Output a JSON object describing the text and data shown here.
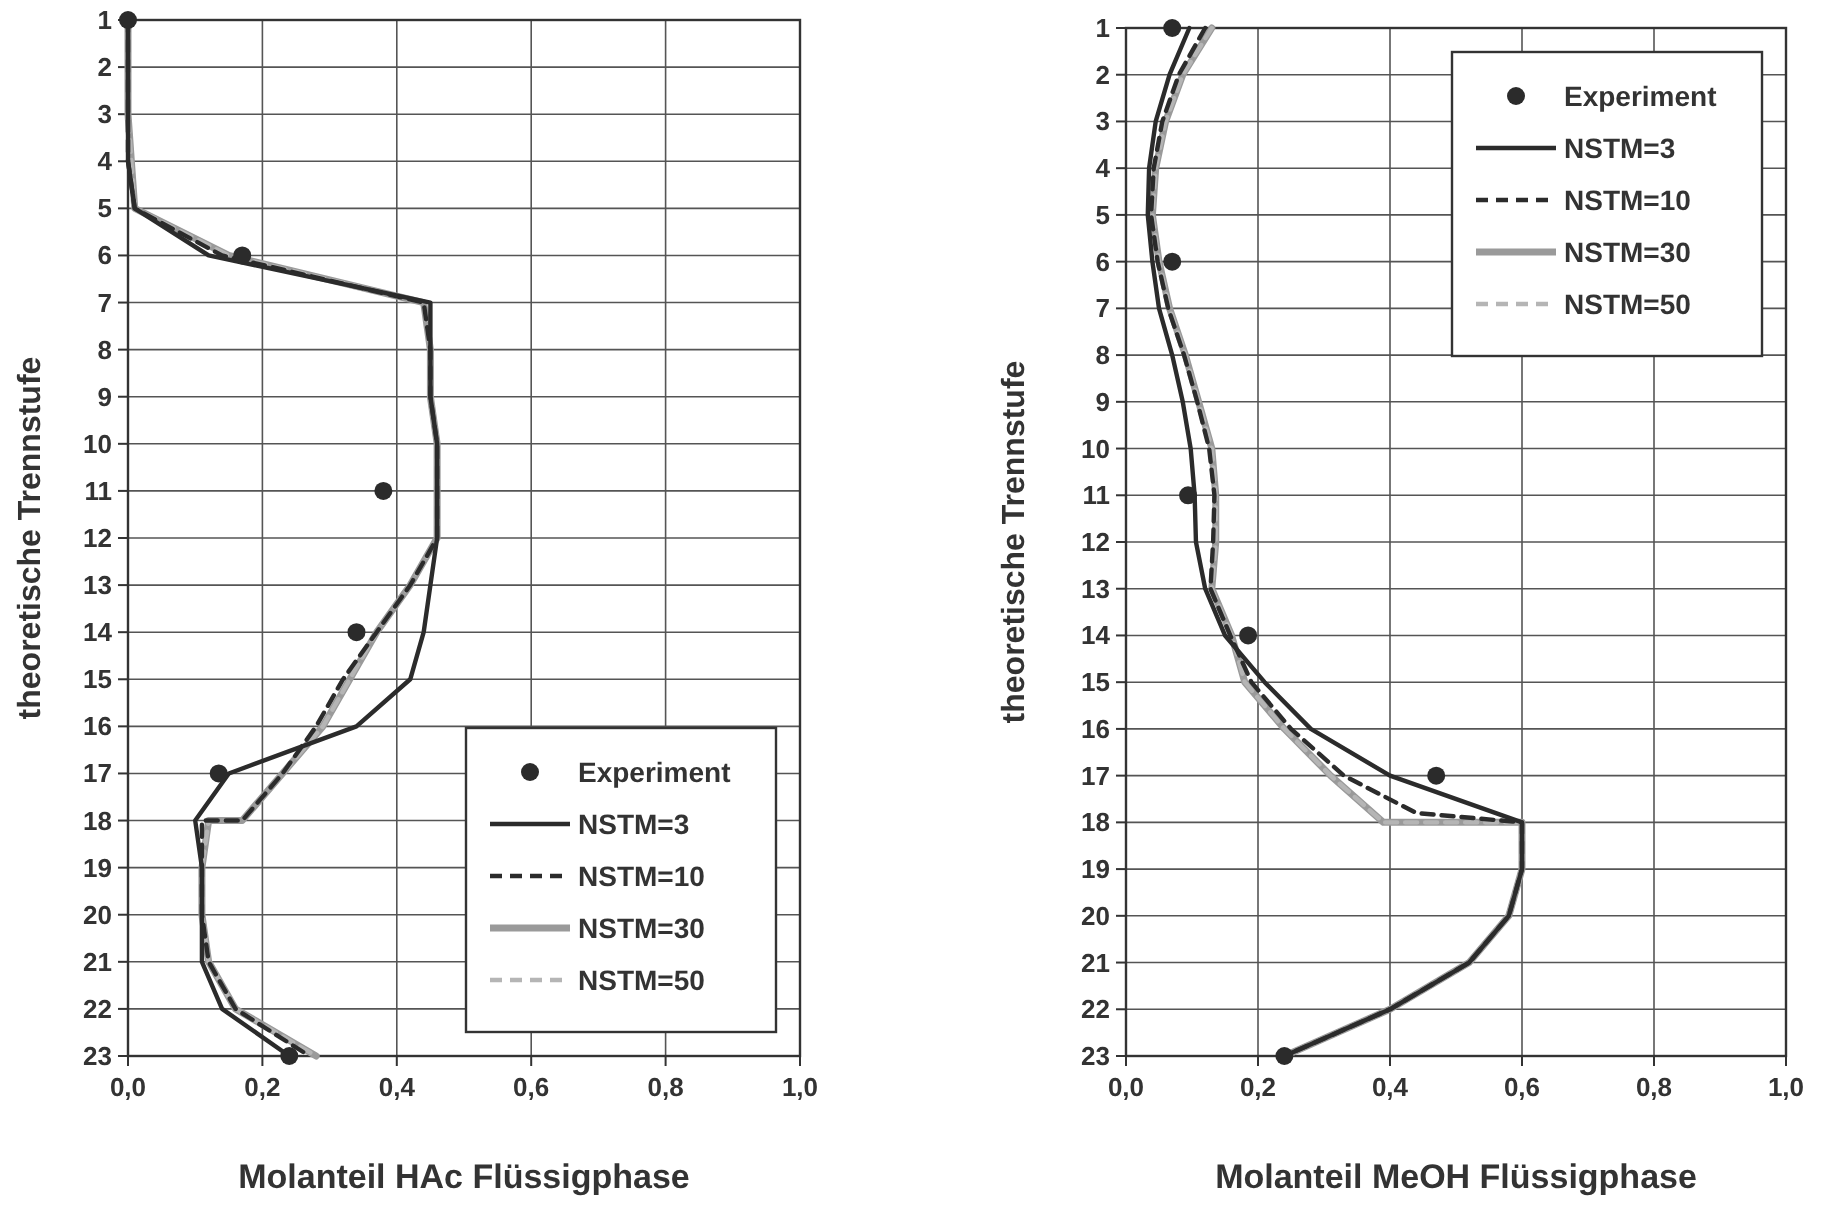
{
  "chart_data": [
    {
      "type": "line",
      "xlabel": "Molanteil HAc Flüssigphase",
      "ylabel": "theoretische Trennstufe",
      "xlim": [
        0,
        1
      ],
      "xticks": [
        {
          "value": 0,
          "label": "0,0"
        },
        {
          "value": 0.2,
          "label": "0,2"
        },
        {
          "value": 0.4,
          "label": "0,4"
        },
        {
          "value": 0.6,
          "label": "0,6"
        },
        {
          "value": 0.8,
          "label": "0,8"
        },
        {
          "value": 1,
          "label": "1,0"
        }
      ],
      "ylim": [
        23,
        1
      ],
      "yticks": [
        1,
        2,
        3,
        4,
        5,
        6,
        7,
        8,
        9,
        10,
        11,
        12,
        13,
        14,
        15,
        16,
        17,
        18,
        19,
        20,
        21,
        22,
        23
      ],
      "grid": true,
      "legend": "bottom right",
      "series": [
        {
          "name": "Experiment",
          "type": "scatter",
          "marker": "circle",
          "color": "#2b2b2b",
          "x": [
            0,
            0.17,
            0.38,
            0.34,
            0.135,
            0.24
          ],
          "values": [
            1,
            6,
            11,
            14,
            17,
            23
          ]
        },
        {
          "name": "NSTM=3",
          "type": "line",
          "marker": "none",
          "line_style": "solid",
          "color": "#2b2b2b",
          "x": [
            0,
            0,
            0,
            0,
            0.01,
            0.12,
            0.45,
            0.45,
            0.45,
            0.46,
            0.46,
            0.46,
            0.45,
            0.44,
            0.42,
            0.34,
            0.15,
            0.1,
            0.11,
            0.11,
            0.11,
            0.14,
            0.24
          ],
          "values": [
            1,
            2,
            3,
            4,
            5,
            6,
            7,
            8,
            9,
            10,
            11,
            12,
            13,
            14,
            15,
            16,
            17,
            18,
            19,
            20,
            21,
            22,
            23
          ]
        },
        {
          "name": "NSTM=10",
          "type": "line",
          "marker": "none",
          "line_style": "dashed",
          "color": "#2b2b2b",
          "x": [
            0,
            0,
            0,
            0,
            0.01,
            0.14,
            0.44,
            0.45,
            0.45,
            0.46,
            0.46,
            0.46,
            0.42,
            0.37,
            0.32,
            0.28,
            0.23,
            0.17,
            0.11,
            0.11,
            0.11,
            0.12,
            0.16,
            0.27
          ],
          "values": [
            1,
            2,
            3,
            4,
            5,
            6,
            7,
            8,
            9,
            10,
            11,
            12,
            13,
            14,
            15,
            16,
            17,
            18,
            18,
            19,
            20,
            21,
            22,
            23
          ]
        },
        {
          "name": "NSTM=30",
          "type": "line",
          "marker": "none",
          "line_style": "solid",
          "color": "#9a9a9a",
          "x": [
            0,
            0,
            0,
            0.005,
            0.01,
            0.15,
            0.44,
            0.45,
            0.45,
            0.46,
            0.46,
            0.46,
            0.42,
            0.37,
            0.33,
            0.29,
            0.23,
            0.17,
            0.12,
            0.11,
            0.11,
            0.12,
            0.16,
            0.28
          ],
          "values": [
            1,
            2,
            3,
            4,
            5,
            6,
            7,
            8,
            9,
            10,
            11,
            12,
            13,
            14,
            15,
            16,
            17,
            18,
            18,
            19,
            20,
            21,
            22,
            23
          ]
        },
        {
          "name": "NSTM=50",
          "type": "line",
          "marker": "none",
          "line_style": "dashed",
          "color": "#b5b5b5",
          "x": [
            0,
            0,
            0,
            0.005,
            0.01,
            0.15,
            0.44,
            0.45,
            0.45,
            0.46,
            0.46,
            0.46,
            0.42,
            0.37,
            0.33,
            0.29,
            0.23,
            0.17,
            0.12,
            0.11,
            0.11,
            0.12,
            0.16,
            0.28
          ],
          "values": [
            1,
            2,
            3,
            4,
            5,
            6,
            7,
            8,
            9,
            10,
            11,
            12,
            13,
            14,
            15,
            16,
            17,
            18,
            18,
            19,
            20,
            21,
            22,
            23
          ]
        }
      ]
    },
    {
      "type": "line",
      "xlabel": "Molanteil MeOH Flüssigphase",
      "ylabel": "theoretische Trennstufe",
      "xlim": [
        0,
        1
      ],
      "xticks": [
        {
          "value": 0,
          "label": "0,0"
        },
        {
          "value": 0.2,
          "label": "0,2"
        },
        {
          "value": 0.4,
          "label": "0,4"
        },
        {
          "value": 0.6,
          "label": "0,6"
        },
        {
          "value": 0.8,
          "label": "0,8"
        },
        {
          "value": 1,
          "label": "1,0"
        }
      ],
      "ylim": [
        23,
        1
      ],
      "yticks": [
        1,
        2,
        3,
        4,
        5,
        6,
        7,
        8,
        9,
        10,
        11,
        12,
        13,
        14,
        15,
        16,
        17,
        18,
        19,
        20,
        21,
        22,
        23
      ],
      "grid": true,
      "legend": "top right",
      "series": [
        {
          "name": "Experiment",
          "type": "scatter",
          "marker": "circle",
          "color": "#2b2b2b",
          "x": [
            0.07,
            0.07,
            0.094,
            0.185,
            0.47,
            0.24
          ],
          "values": [
            1,
            6,
            11,
            14,
            17,
            23
          ]
        },
        {
          "name": "NSTM=3",
          "type": "line",
          "marker": "none",
          "line_style": "solid",
          "color": "#2b2b2b",
          "x": [
            0.096,
            0.066,
            0.045,
            0.035,
            0.033,
            0.04,
            0.05,
            0.07,
            0.086,
            0.098,
            0.104,
            0.106,
            0.12,
            0.15,
            0.21,
            0.28,
            0.4,
            0.6,
            0.6,
            0.58,
            0.52,
            0.4,
            0.24
          ],
          "values": [
            1,
            2,
            3,
            4,
            5,
            6,
            7,
            8,
            9,
            10,
            11,
            12,
            13,
            14,
            15,
            16,
            17,
            18,
            19,
            20,
            21,
            22,
            23
          ]
        },
        {
          "name": "NSTM=10",
          "type": "line",
          "marker": "none",
          "line_style": "dashed",
          "color": "#2b2b2b",
          "x": [
            0.12,
            0.08,
            0.055,
            0.042,
            0.038,
            0.048,
            0.064,
            0.088,
            0.108,
            0.126,
            0.134,
            0.132,
            0.128,
            0.158,
            0.19,
            0.25,
            0.33,
            0.44,
            0.6,
            0.6,
            0.58,
            0.52,
            0.4,
            0.24
          ],
          "values": [
            1,
            2,
            3,
            4,
            5,
            6,
            7,
            8,
            9,
            10,
            11,
            12,
            13,
            14,
            15,
            16,
            17,
            17.8,
            18,
            19,
            20,
            21,
            22,
            23
          ]
        },
        {
          "name": "NSTM=30",
          "type": "line",
          "marker": "none",
          "line_style": "solid",
          "color": "#9a9a9a",
          "x": [
            0.13,
            0.086,
            0.06,
            0.045,
            0.04,
            0.05,
            0.066,
            0.09,
            0.11,
            0.13,
            0.136,
            0.136,
            0.13,
            0.16,
            0.18,
            0.24,
            0.31,
            0.39,
            0.6,
            0.6,
            0.58,
            0.52,
            0.4,
            0.24
          ],
          "values": [
            1,
            2,
            3,
            4,
            5,
            6,
            7,
            8,
            9,
            10,
            11,
            12,
            13,
            14,
            15,
            16,
            17,
            18,
            18,
            19,
            20,
            21,
            22,
            23
          ]
        },
        {
          "name": "NSTM=50",
          "type": "line",
          "marker": "none",
          "line_style": "dashed",
          "color": "#b5b5b5",
          "x": [
            0.13,
            0.086,
            0.06,
            0.045,
            0.04,
            0.05,
            0.066,
            0.09,
            0.11,
            0.13,
            0.136,
            0.136,
            0.13,
            0.16,
            0.18,
            0.24,
            0.31,
            0.39,
            0.6,
            0.6,
            0.58,
            0.52,
            0.4,
            0.24
          ],
          "values": [
            1,
            2,
            3,
            4,
            5,
            6,
            7,
            8,
            9,
            10,
            11,
            12,
            13,
            14,
            15,
            16,
            17,
            18,
            18,
            19,
            20,
            21,
            22,
            23
          ]
        }
      ]
    }
  ]
}
